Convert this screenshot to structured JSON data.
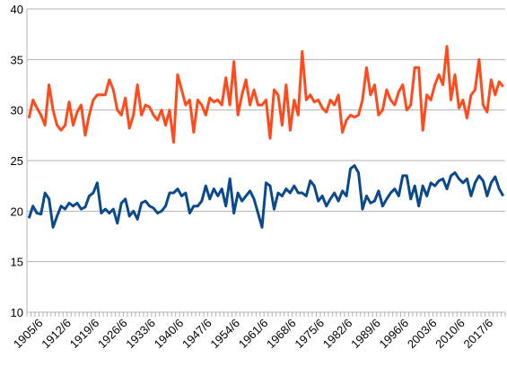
{
  "chart_data": {
    "type": "line",
    "categories": [
      null,
      null,
      null,
      "1905/6",
      null,
      null,
      null,
      null,
      null,
      null,
      "1912/6",
      null,
      null,
      null,
      null,
      null,
      null,
      "1919/6",
      null,
      null,
      null,
      null,
      null,
      null,
      "1926/6",
      null,
      null,
      null,
      null,
      null,
      null,
      "1933/6",
      null,
      null,
      null,
      null,
      null,
      null,
      "1940/6",
      null,
      null,
      null,
      null,
      null,
      null,
      "1947/6",
      null,
      null,
      null,
      null,
      null,
      null,
      "1954/6",
      null,
      null,
      null,
      null,
      null,
      null,
      "1961/6",
      null,
      null,
      null,
      null,
      null,
      null,
      "1968/6",
      null,
      null,
      null,
      null,
      null,
      null,
      "1975/6",
      null,
      null,
      null,
      null,
      null,
      null,
      "1982/6",
      null,
      null,
      null,
      null,
      null,
      null,
      "1989/6",
      null,
      null,
      null,
      null,
      null,
      null,
      "1996/6",
      null,
      null,
      null,
      null,
      null,
      null,
      "2003/6",
      null,
      null,
      null,
      null,
      null,
      null,
      "2010/6",
      null,
      null,
      null,
      null,
      null,
      null,
      "2017/6",
      null,
      null,
      null
    ],
    "series": [
      {
        "color": "#ff4a1c",
        "values": [
          29.2,
          31,
          30.2,
          29.5,
          28.5,
          32.5,
          30,
          28.5,
          28,
          28.5,
          30.8,
          28.5,
          29.8,
          30.5,
          27.5,
          29.5,
          31,
          31.5,
          31.5,
          31.5,
          33,
          32,
          30,
          29.5,
          31.2,
          28.2,
          29.5,
          32.5,
          29.5,
          30.5,
          30.3,
          29.5,
          29,
          30,
          28.5,
          30,
          26.8,
          33.5,
          32,
          30.5,
          31,
          27.8,
          31,
          30.5,
          29.5,
          31.2,
          30.8,
          31,
          30.5,
          33.2,
          30.5,
          34.8,
          29.5,
          31.5,
          33,
          30.5,
          32,
          30.5,
          30.5,
          31,
          27.2,
          32,
          31.5,
          28.5,
          32.5,
          28,
          31,
          29.5,
          35.8,
          31,
          31.5,
          30.8,
          31,
          30.2,
          29.8,
          31,
          30.5,
          31.5,
          27.8,
          29,
          29.5,
          29.3,
          29.5,
          31,
          34.2,
          31.5,
          32.5,
          29.5,
          30,
          32,
          31,
          30.5,
          31.8,
          32.5,
          30,
          30.5,
          34.2,
          34.2,
          28,
          31.5,
          31,
          32.5,
          33.5,
          32.5,
          36.3,
          31,
          33.5,
          30.2,
          31,
          29.2,
          31.5,
          32,
          35,
          30.5,
          29.8,
          33,
          31.5,
          32.8,
          32.3
        ]
      },
      {
        "color": "#0a4a8c",
        "values": [
          19.3,
          20.5,
          19.8,
          19.7,
          21.8,
          21.2,
          18.4,
          19.5,
          20.5,
          20.2,
          20.8,
          20.5,
          20.8,
          20.2,
          20.4,
          21.5,
          21.8,
          22.8,
          19.8,
          20.2,
          19.8,
          20.2,
          18.8,
          20.8,
          21.2,
          19.5,
          20,
          19.2,
          20.8,
          21,
          20.5,
          20.3,
          19.8,
          20,
          20.5,
          21.8,
          21.8,
          22.2,
          21.5,
          21.8,
          19.8,
          20.5,
          20.5,
          21,
          22.5,
          21.2,
          22.2,
          21.5,
          22.2,
          20.5,
          23.2,
          19.8,
          21.8,
          21,
          21.5,
          22,
          21.2,
          19.8,
          18.4,
          22.8,
          22.5,
          20.2,
          21.8,
          21.5,
          22.2,
          21.8,
          22.5,
          21.8,
          21.8,
          21.5,
          23,
          22.5,
          21,
          21.5,
          20.5,
          21.2,
          21.8,
          21,
          22,
          21.5,
          24.2,
          24.5,
          23.8,
          20.2,
          21.5,
          20.8,
          21,
          22,
          20.5,
          21.2,
          21.8,
          22.2,
          21.5,
          23.5,
          23.5,
          21.2,
          22.5,
          20.5,
          22.5,
          21.5,
          22.8,
          22.5,
          23,
          23.2,
          22.2,
          23.5,
          23.8,
          23.2,
          22.8,
          23.2,
          21.5,
          22.8,
          23.5,
          23,
          21.5,
          22.8,
          23.4,
          22.2,
          21.5
        ]
      }
    ],
    "ylim": [
      10,
      40
    ],
    "yticks": [
      10,
      15,
      20,
      25,
      30,
      35,
      40
    ],
    "grid": true
  }
}
